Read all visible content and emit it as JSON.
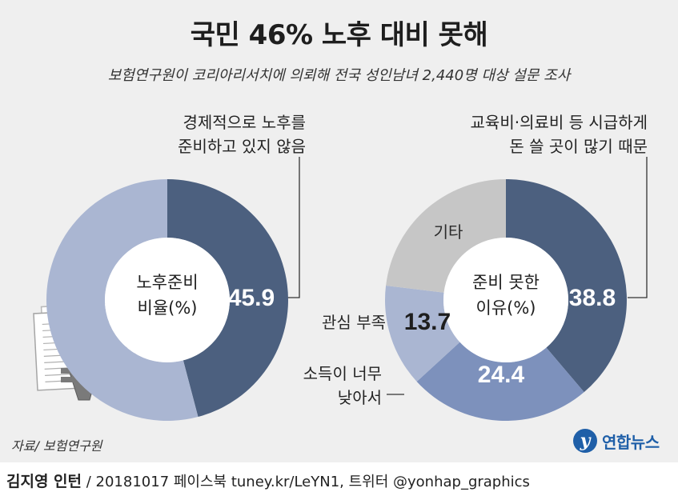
{
  "title": "국민 46% 노후 대비 못해",
  "subtitle": "보험연구원이 코리아리서치에 의뢰해 전국 성인남녀 2,440명 대상 설문 조사",
  "colors": {
    "dark": "#4c607f",
    "light": "#aab6d2",
    "mid": "#7d91bc",
    "gray": "#c6c6c6",
    "background": "#efefef"
  },
  "chart_data": [
    {
      "type": "pie",
      "variant": "donut",
      "center_label": [
        "노후준비",
        "비율(%)"
      ],
      "slices": [
        {
          "label": "경제적으로 노후를 준비하고 있지 않음",
          "value": 45.9,
          "display": "45.9",
          "color": "#4c607f"
        },
        {
          "label": "",
          "value": 54.1,
          "display": "",
          "color": "#aab6d2"
        }
      ]
    },
    {
      "type": "pie",
      "variant": "donut",
      "center_label": [
        "준비 못한",
        "이유(%)"
      ],
      "slices": [
        {
          "label": "교육비·의료비 등 시급하게 돈 쓸 곳이 많기 때문",
          "value": 38.8,
          "display": "38.8",
          "color": "#4c607f"
        },
        {
          "label": "소득이 너무 낮아서",
          "value": 24.4,
          "display": "24.4",
          "color": "#7d91bc"
        },
        {
          "label": "관심 부족",
          "value": 13.7,
          "display": "13.7",
          "color": "#aab6d2"
        },
        {
          "label": "기타",
          "value": 23.1,
          "display": "",
          "color": "#c6c6c6"
        }
      ]
    }
  ],
  "annotations": {
    "left_top": [
      "경제적으로 노후를",
      "준비하고 있지 않음"
    ],
    "right_top": [
      "교육비·의료비 등 시급하게",
      "돈 쓸 곳이 많기 때문"
    ],
    "income": [
      "소득이 너무",
      "낮아서"
    ],
    "interest": "관심 부족",
    "other": "기타"
  },
  "source": "자료/ 보험연구원",
  "logo": {
    "mark": "y",
    "text": "연합뉴스"
  },
  "credit": {
    "name": "김지영 인턴",
    "rest": " / 20181017  페이스북 tuney.kr/LeYN1, 트위터 @yonhap_graphics"
  }
}
